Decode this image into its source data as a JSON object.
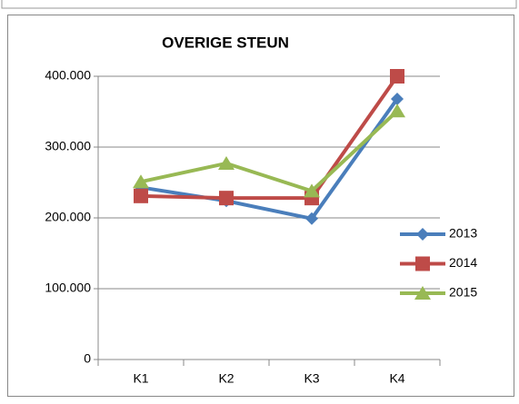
{
  "chart_data": {
    "type": "line",
    "title": "OVERIGE STEUN",
    "categories": [
      "K1",
      "K2",
      "K3",
      "K4"
    ],
    "series": [
      {
        "name": "2013",
        "color": "#4a7ebb",
        "marker": "diamond",
        "values": [
          243000,
          224000,
          199000,
          368000
        ]
      },
      {
        "name": "2014",
        "color": "#be4b48",
        "marker": "square",
        "values": [
          231000,
          228000,
          228000,
          400000
        ]
      },
      {
        "name": "2015",
        "color": "#98b954",
        "marker": "triangle",
        "values": [
          251000,
          277000,
          238000,
          351000
        ]
      }
    ],
    "ylim": [
      0,
      400000
    ],
    "yticks": [
      0,
      {
        "value": 100000,
        "label": "100.000"
      },
      {
        "value": 200000,
        "label": "200.000"
      },
      {
        "value": 300000,
        "label": "300.000"
      },
      {
        "value": 400000,
        "label": "400.000"
      }
    ],
    "grid": true,
    "legend": "right"
  }
}
